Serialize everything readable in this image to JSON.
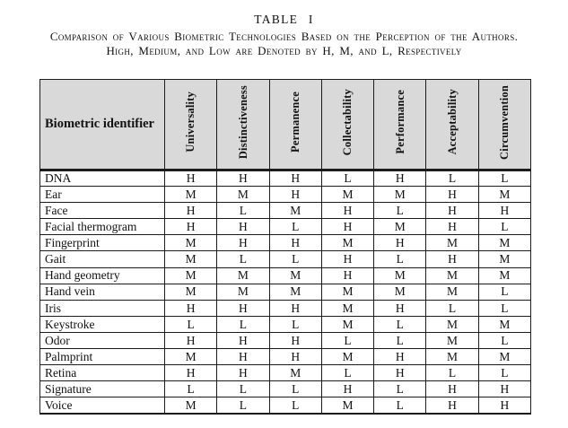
{
  "title": "TABLE I",
  "caption_line1": "Comparison of Various Biometric Technologies Based on the Perception of the Authors.",
  "caption_line2": "High, Medium, and Low are Denoted by H, M, and L, Respectively",
  "table": {
    "row_header_label": "Biometric identifier",
    "columns": [
      "Universality",
      "Distinctiveness",
      "Permanence",
      "Collectability",
      "Performance",
      "Acceptability",
      "Circumvention"
    ],
    "rows": [
      {
        "label": "DNA",
        "values": [
          "H",
          "H",
          "H",
          "L",
          "H",
          "L",
          "L"
        ]
      },
      {
        "label": "Ear",
        "values": [
          "M",
          "M",
          "H",
          "M",
          "M",
          "H",
          "M"
        ]
      },
      {
        "label": "Face",
        "values": [
          "H",
          "L",
          "M",
          "H",
          "L",
          "H",
          "H"
        ]
      },
      {
        "label": "Facial thermogram",
        "values": [
          "H",
          "H",
          "L",
          "H",
          "M",
          "H",
          "L"
        ]
      },
      {
        "label": "Fingerprint",
        "values": [
          "M",
          "H",
          "H",
          "M",
          "H",
          "M",
          "M"
        ]
      },
      {
        "label": "Gait",
        "values": [
          "M",
          "L",
          "L",
          "H",
          "L",
          "H",
          "M"
        ]
      },
      {
        "label": "Hand geometry",
        "values": [
          "M",
          "M",
          "M",
          "H",
          "M",
          "M",
          "M"
        ]
      },
      {
        "label": "Hand vein",
        "values": [
          "M",
          "M",
          "M",
          "M",
          "M",
          "M",
          "L"
        ]
      },
      {
        "label": "Iris",
        "values": [
          "H",
          "H",
          "H",
          "M",
          "H",
          "L",
          "L"
        ]
      },
      {
        "label": "Keystroke",
        "values": [
          "L",
          "L",
          "L",
          "M",
          "L",
          "M",
          "M"
        ]
      },
      {
        "label": "Odor",
        "values": [
          "H",
          "H",
          "H",
          "L",
          "L",
          "M",
          "L"
        ]
      },
      {
        "label": "Palmprint",
        "values": [
          "M",
          "H",
          "H",
          "M",
          "H",
          "M",
          "M"
        ]
      },
      {
        "label": "Retina",
        "values": [
          "H",
          "H",
          "M",
          "L",
          "H",
          "L",
          "L"
        ]
      },
      {
        "label": "Signature",
        "values": [
          "L",
          "L",
          "L",
          "H",
          "L",
          "H",
          "H"
        ]
      },
      {
        "label": "Voice",
        "values": [
          "M",
          "L",
          "L",
          "M",
          "L",
          "H",
          "H"
        ]
      }
    ]
  },
  "colors": {
    "header_bg": "#d9d9d9",
    "border": "#1c1c1c",
    "text": "#111111",
    "page_bg": "#ffffff"
  }
}
